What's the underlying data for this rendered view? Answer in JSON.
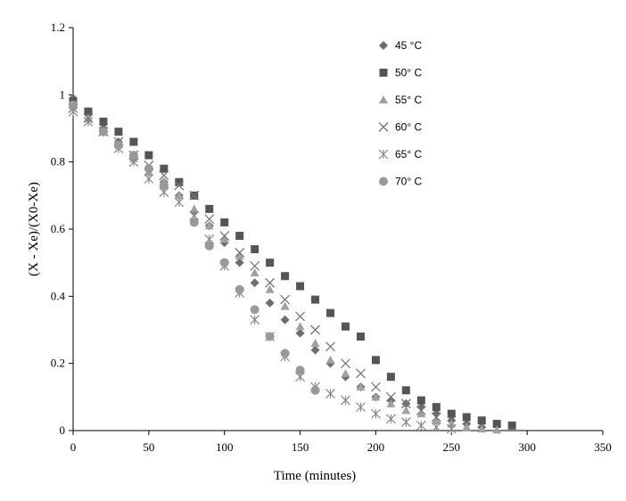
{
  "chart_data": {
    "type": "scatter",
    "xlabel": "Time (minutes)",
    "ylabel": "(X - Xe)/(X0-Xe)",
    "xlim": [
      0,
      350
    ],
    "ylim": [
      0,
      1.2
    ],
    "x_ticks": [
      "0",
      "50",
      "100",
      "150",
      "200",
      "250",
      "300",
      "350"
    ],
    "y_ticks": [
      "0",
      "0.2",
      "0.4",
      "0.6",
      "0.8",
      "1",
      "1.2"
    ],
    "grid": false,
    "legend_position": "top-right",
    "series": [
      {
        "name": "45 °C",
        "marker": "diamond",
        "color": "#6e6e6e",
        "points": [
          [
            0,
            0.99
          ],
          [
            10,
            0.95
          ],
          [
            20,
            0.9
          ],
          [
            30,
            0.86
          ],
          [
            40,
            0.82
          ],
          [
            50,
            0.78
          ],
          [
            60,
            0.74
          ],
          [
            70,
            0.7
          ],
          [
            80,
            0.65
          ],
          [
            90,
            0.61
          ],
          [
            100,
            0.56
          ],
          [
            110,
            0.5
          ],
          [
            120,
            0.44
          ],
          [
            130,
            0.38
          ],
          [
            140,
            0.33
          ],
          [
            150,
            0.29
          ],
          [
            160,
            0.24
          ],
          [
            170,
            0.2
          ],
          [
            180,
            0.16
          ],
          [
            190,
            0.13
          ],
          [
            200,
            0.1
          ],
          [
            210,
            0.09
          ],
          [
            220,
            0.08
          ],
          [
            230,
            0.07
          ],
          [
            240,
            0.05
          ],
          [
            250,
            0.03
          ],
          [
            260,
            0.02
          ],
          [
            270,
            0.01
          ]
        ]
      },
      {
        "name": "50° C",
        "marker": "square",
        "color": "#555555",
        "points": [
          [
            0,
            0.98
          ],
          [
            10,
            0.95
          ],
          [
            20,
            0.92
          ],
          [
            30,
            0.89
          ],
          [
            40,
            0.86
          ],
          [
            50,
            0.82
          ],
          [
            60,
            0.78
          ],
          [
            70,
            0.74
          ],
          [
            80,
            0.7
          ],
          [
            90,
            0.66
          ],
          [
            100,
            0.62
          ],
          [
            110,
            0.58
          ],
          [
            120,
            0.54
          ],
          [
            130,
            0.5
          ],
          [
            140,
            0.46
          ],
          [
            150,
            0.43
          ],
          [
            160,
            0.39
          ],
          [
            170,
            0.35
          ],
          [
            180,
            0.31
          ],
          [
            190,
            0.28
          ],
          [
            200,
            0.21
          ],
          [
            210,
            0.16
          ],
          [
            220,
            0.12
          ],
          [
            230,
            0.09
          ],
          [
            240,
            0.07
          ],
          [
            250,
            0.05
          ],
          [
            260,
            0.04
          ],
          [
            270,
            0.03
          ],
          [
            280,
            0.02
          ],
          [
            290,
            0.015
          ]
        ]
      },
      {
        "name": "55° C",
        "marker": "triangle",
        "color": "#a0a0a0",
        "points": [
          [
            0,
            0.97
          ],
          [
            10,
            0.93
          ],
          [
            20,
            0.89
          ],
          [
            30,
            0.85
          ],
          [
            40,
            0.81
          ],
          [
            50,
            0.77
          ],
          [
            60,
            0.74
          ],
          [
            70,
            0.7
          ],
          [
            80,
            0.66
          ],
          [
            90,
            0.61
          ],
          [
            100,
            0.57
          ],
          [
            110,
            0.52
          ],
          [
            120,
            0.47
          ],
          [
            130,
            0.42
          ],
          [
            140,
            0.37
          ],
          [
            150,
            0.31
          ],
          [
            160,
            0.26
          ],
          [
            170,
            0.21
          ],
          [
            180,
            0.17
          ],
          [
            190,
            0.13
          ],
          [
            200,
            0.1
          ],
          [
            210,
            0.08
          ],
          [
            220,
            0.06
          ],
          [
            230,
            0.05
          ],
          [
            240,
            0.03
          ],
          [
            250,
            0.02
          ],
          [
            260,
            0.01
          ],
          [
            270,
            0.005
          ],
          [
            280,
            0.002
          ]
        ]
      },
      {
        "name": "60° C",
        "marker": "x",
        "color": "#777777",
        "points": [
          [
            0,
            0.96
          ],
          [
            10,
            0.93
          ],
          [
            20,
            0.89
          ],
          [
            30,
            0.86
          ],
          [
            40,
            0.82
          ],
          [
            50,
            0.79
          ],
          [
            60,
            0.76
          ],
          [
            70,
            0.73
          ],
          [
            80,
            0.7
          ],
          [
            90,
            0.63
          ],
          [
            100,
            0.58
          ],
          [
            110,
            0.53
          ],
          [
            120,
            0.49
          ],
          [
            130,
            0.44
          ],
          [
            140,
            0.39
          ],
          [
            150,
            0.34
          ],
          [
            160,
            0.3
          ],
          [
            170,
            0.25
          ],
          [
            180,
            0.2
          ],
          [
            190,
            0.17
          ],
          [
            200,
            0.13
          ],
          [
            210,
            0.1
          ],
          [
            220,
            0.08
          ],
          [
            230,
            0.06
          ],
          [
            240,
            0.04
          ]
        ]
      },
      {
        "name": "65° C",
        "marker": "asterisk",
        "color": "#888888",
        "points": [
          [
            0,
            0.95
          ],
          [
            10,
            0.92
          ],
          [
            20,
            0.89
          ],
          [
            30,
            0.84
          ],
          [
            40,
            0.8
          ],
          [
            50,
            0.75
          ],
          [
            60,
            0.71
          ],
          [
            70,
            0.68
          ],
          [
            80,
            0.64
          ],
          [
            90,
            0.57
          ],
          [
            100,
            0.49
          ],
          [
            110,
            0.41
          ],
          [
            120,
            0.33
          ],
          [
            130,
            0.28
          ],
          [
            140,
            0.22
          ],
          [
            150,
            0.16
          ],
          [
            160,
            0.13
          ],
          [
            170,
            0.11
          ],
          [
            180,
            0.09
          ],
          [
            190,
            0.07
          ],
          [
            200,
            0.05
          ],
          [
            210,
            0.035
          ],
          [
            220,
            0.025
          ],
          [
            230,
            0.015
          ],
          [
            240,
            0.01
          ],
          [
            250,
            0.005
          ]
        ]
      },
      {
        "name": "70° C",
        "marker": "circle",
        "color": "#999999",
        "points": [
          [
            0,
            0.97
          ],
          [
            20,
            0.89
          ],
          [
            30,
            0.85
          ],
          [
            40,
            0.82
          ],
          [
            50,
            0.78
          ],
          [
            60,
            0.73
          ],
          [
            80,
            0.62
          ],
          [
            90,
            0.55
          ],
          [
            100,
            0.5
          ],
          [
            110,
            0.42
          ],
          [
            120,
            0.36
          ],
          [
            130,
            0.28
          ],
          [
            140,
            0.23
          ],
          [
            150,
            0.18
          ],
          [
            160,
            0.12
          ]
        ]
      }
    ]
  }
}
